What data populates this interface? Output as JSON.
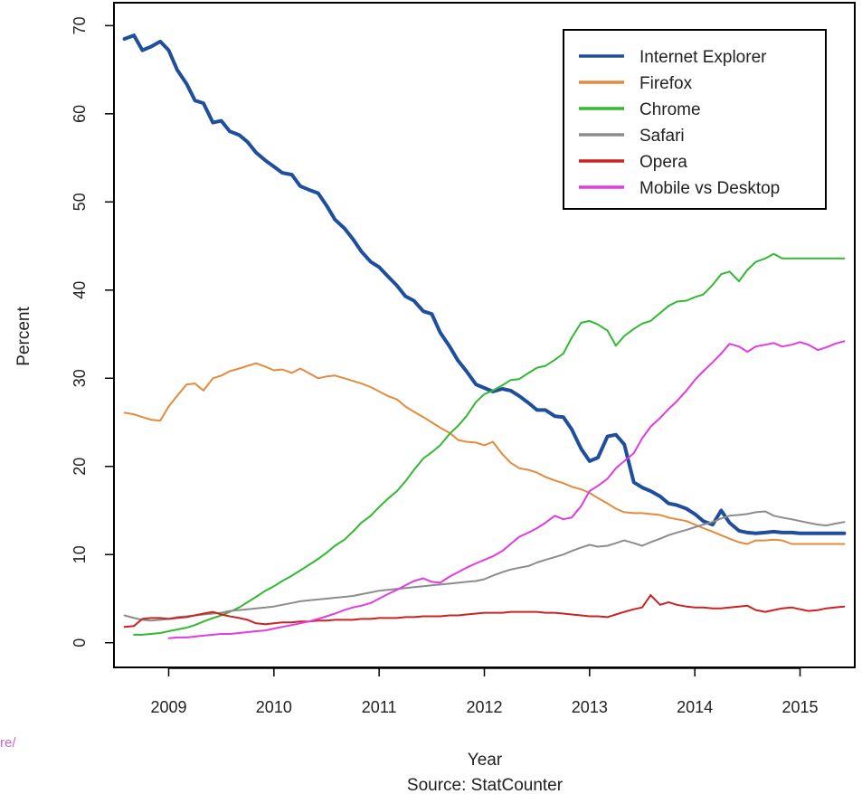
{
  "chart_data": {
    "type": "line",
    "title": "",
    "xlabel": "Year",
    "source_label": "Source: StatCounter",
    "ylabel": "Percent",
    "xlim": [
      2008.48,
      2015.52
    ],
    "ylim": [
      -2.8,
      72.6
    ],
    "x_ticks": [
      2009,
      2010,
      2011,
      2012,
      2013,
      2014,
      2015
    ],
    "y_ticks": [
      0,
      10,
      20,
      30,
      40,
      50,
      60,
      70
    ],
    "legend_position": "top-right",
    "grid": false,
    "series": [
      {
        "name": "Internet Explorer",
        "color": "#1f4e9c",
        "width": 4,
        "x": [
          2008.58,
          2008.67,
          2008.75,
          2008.83,
          2008.92,
          2009.0,
          2009.08,
          2009.17,
          2009.25,
          2009.33,
          2009.42,
          2009.5,
          2009.58,
          2009.67,
          2009.75,
          2009.83,
          2009.92,
          2010.0,
          2010.08,
          2010.17,
          2010.25,
          2010.33,
          2010.42,
          2010.5,
          2010.58,
          2010.67,
          2010.75,
          2010.83,
          2010.92,
          2011.0,
          2011.08,
          2011.17,
          2011.25,
          2011.33,
          2011.42,
          2011.5,
          2011.58,
          2011.67,
          2011.75,
          2011.83,
          2011.92,
          2012.0,
          2012.08,
          2012.17,
          2012.25,
          2012.33,
          2012.42,
          2012.5,
          2012.58,
          2012.67,
          2012.75,
          2012.83,
          2012.92,
          2013.0,
          2013.08,
          2013.17,
          2013.25,
          2013.33,
          2013.42,
          2013.5,
          2013.58,
          2013.67,
          2013.75,
          2013.83,
          2013.92,
          2014.0,
          2014.08,
          2014.17,
          2014.25,
          2014.33,
          2014.42,
          2014.5,
          2014.58,
          2014.67,
          2014.75,
          2014.83,
          2014.92,
          2015.0,
          2015.08,
          2015.17,
          2015.25,
          2015.33,
          2015.42
        ],
        "y": [
          68.5,
          68.9,
          67.2,
          67.6,
          68.2,
          67.2,
          65.0,
          63.4,
          61.5,
          61.2,
          59.0,
          59.2,
          58.0,
          57.6,
          56.8,
          55.6,
          54.7,
          54.0,
          53.3,
          53.1,
          51.8,
          51.4,
          51.0,
          49.6,
          48.0,
          47.0,
          45.8,
          44.4,
          43.2,
          42.6,
          41.6,
          40.5,
          39.3,
          38.8,
          37.6,
          37.3,
          35.2,
          33.6,
          32.0,
          30.8,
          29.3,
          28.9,
          28.5,
          28.8,
          28.6,
          28.0,
          27.2,
          26.4,
          26.4,
          25.7,
          25.6,
          24.2,
          22.0,
          20.6,
          21.0,
          23.4,
          23.6,
          22.5,
          18.2,
          17.6,
          17.2,
          16.6,
          15.8,
          15.6,
          15.2,
          14.6,
          13.8,
          13.4,
          15.0,
          13.6,
          12.7,
          12.5,
          12.4,
          12.5,
          12.6,
          12.5,
          12.5,
          12.4,
          12.4,
          12.4,
          12.4,
          12.4,
          12.4
        ]
      },
      {
        "name": "Firefox",
        "color": "#e58a3c",
        "width": 2,
        "x": [
          2008.58,
          2008.67,
          2008.75,
          2008.83,
          2008.92,
          2009.0,
          2009.08,
          2009.17,
          2009.25,
          2009.33,
          2009.42,
          2009.5,
          2009.58,
          2009.67,
          2009.75,
          2009.83,
          2009.92,
          2010.0,
          2010.08,
          2010.17,
          2010.25,
          2010.33,
          2010.42,
          2010.5,
          2010.58,
          2010.67,
          2010.75,
          2010.83,
          2010.92,
          2011.0,
          2011.08,
          2011.17,
          2011.25,
          2011.33,
          2011.42,
          2011.5,
          2011.58,
          2011.67,
          2011.75,
          2011.83,
          2011.92,
          2012.0,
          2012.08,
          2012.17,
          2012.25,
          2012.33,
          2012.42,
          2012.5,
          2012.58,
          2012.67,
          2012.75,
          2012.83,
          2012.92,
          2013.0,
          2013.08,
          2013.17,
          2013.25,
          2013.33,
          2013.42,
          2013.5,
          2013.58,
          2013.67,
          2013.75,
          2013.83,
          2013.92,
          2014.0,
          2014.08,
          2014.17,
          2014.25,
          2014.33,
          2014.42,
          2014.5,
          2014.58,
          2014.67,
          2014.75,
          2014.83,
          2014.92,
          2015.0,
          2015.08,
          2015.17,
          2015.25,
          2015.33,
          2015.42
        ],
        "y": [
          26.1,
          25.9,
          25.6,
          25.3,
          25.2,
          26.8,
          28.0,
          29.3,
          29.4,
          28.6,
          30.0,
          30.3,
          30.8,
          31.1,
          31.4,
          31.7,
          31.3,
          30.9,
          31.0,
          30.6,
          31.1,
          30.6,
          30.0,
          30.2,
          30.3,
          30.0,
          29.7,
          29.4,
          29.0,
          28.5,
          28.0,
          27.6,
          26.8,
          26.2,
          25.6,
          25.0,
          24.4,
          23.8,
          23.0,
          22.8,
          22.7,
          22.4,
          22.8,
          21.4,
          20.4,
          19.8,
          19.6,
          19.3,
          18.8,
          18.4,
          18.1,
          17.7,
          17.4,
          17.0,
          16.4,
          15.8,
          15.2,
          14.8,
          14.7,
          14.7,
          14.6,
          14.5,
          14.2,
          14.0,
          13.8,
          13.4,
          13.0,
          12.6,
          12.2,
          11.8,
          11.4,
          11.2,
          11.6,
          11.6,
          11.7,
          11.6,
          11.2,
          11.2,
          11.2,
          11.2,
          11.2,
          11.2,
          11.2
        ]
      },
      {
        "name": "Chrome",
        "color": "#33b833",
        "width": 2,
        "x": [
          2008.67,
          2008.75,
          2008.83,
          2008.92,
          2009.0,
          2009.08,
          2009.17,
          2009.25,
          2009.33,
          2009.42,
          2009.5,
          2009.58,
          2009.67,
          2009.75,
          2009.83,
          2009.92,
          2010.0,
          2010.08,
          2010.17,
          2010.25,
          2010.33,
          2010.42,
          2010.5,
          2010.58,
          2010.67,
          2010.75,
          2010.83,
          2010.92,
          2011.0,
          2011.08,
          2011.17,
          2011.25,
          2011.33,
          2011.42,
          2011.5,
          2011.58,
          2011.67,
          2011.75,
          2011.83,
          2011.92,
          2012.0,
          2012.08,
          2012.17,
          2012.25,
          2012.33,
          2012.42,
          2012.5,
          2012.58,
          2012.67,
          2012.75,
          2012.83,
          2012.92,
          2013.0,
          2013.08,
          2013.17,
          2013.25,
          2013.33,
          2013.42,
          2013.5,
          2013.58,
          2013.67,
          2013.75,
          2013.83,
          2013.92,
          2014.0,
          2014.08,
          2014.17,
          2014.25,
          2014.33,
          2014.42,
          2014.5,
          2014.58,
          2014.67,
          2014.75,
          2014.83,
          2014.92,
          2015.0,
          2015.08,
          2015.17,
          2015.25,
          2015.33,
          2015.42
        ],
        "y": [
          0.9,
          0.9,
          1.0,
          1.1,
          1.3,
          1.5,
          1.7,
          2.0,
          2.4,
          2.8,
          3.1,
          3.5,
          4.0,
          4.6,
          5.2,
          5.9,
          6.4,
          7.0,
          7.6,
          8.2,
          8.8,
          9.5,
          10.2,
          11.0,
          11.7,
          12.6,
          13.6,
          14.4,
          15.4,
          16.3,
          17.2,
          18.3,
          19.6,
          20.9,
          21.6,
          22.4,
          23.7,
          24.6,
          25.7,
          27.3,
          28.2,
          28.6,
          29.2,
          29.8,
          29.9,
          30.6,
          31.2,
          31.4,
          32.1,
          32.8,
          34.6,
          36.3,
          36.5,
          36.1,
          35.4,
          33.7,
          34.8,
          35.6,
          36.2,
          36.5,
          37.4,
          38.2,
          38.7,
          38.8,
          39.2,
          39.5,
          40.6,
          41.8,
          42.1,
          41.0,
          42.3,
          43.2,
          43.6,
          44.1,
          43.6,
          43.6,
          43.6,
          43.6,
          43.6,
          43.6,
          43.6,
          43.6
        ]
      },
      {
        "name": "Safari",
        "color": "#8c8c8c",
        "width": 2,
        "x": [
          2008.58,
          2008.67,
          2008.75,
          2008.83,
          2008.92,
          2009.0,
          2009.08,
          2009.17,
          2009.25,
          2009.33,
          2009.42,
          2009.5,
          2009.58,
          2009.67,
          2009.75,
          2009.83,
          2009.92,
          2010.0,
          2010.08,
          2010.17,
          2010.25,
          2010.33,
          2010.42,
          2010.5,
          2010.58,
          2010.67,
          2010.75,
          2010.83,
          2010.92,
          2011.0,
          2011.08,
          2011.17,
          2011.25,
          2011.33,
          2011.42,
          2011.5,
          2011.58,
          2011.67,
          2011.75,
          2011.83,
          2011.92,
          2012.0,
          2012.08,
          2012.17,
          2012.25,
          2012.33,
          2012.42,
          2012.5,
          2012.58,
          2012.67,
          2012.75,
          2012.83,
          2012.92,
          2013.0,
          2013.08,
          2013.17,
          2013.25,
          2013.33,
          2013.42,
          2013.5,
          2013.58,
          2013.67,
          2013.75,
          2013.83,
          2013.92,
          2014.0,
          2014.08,
          2014.17,
          2014.25,
          2014.33,
          2014.42,
          2014.5,
          2014.58,
          2014.67,
          2014.75,
          2014.83,
          2014.92,
          2015.0,
          2015.08,
          2015.17,
          2015.25,
          2015.33,
          2015.42
        ],
        "y": [
          3.1,
          2.8,
          2.6,
          2.5,
          2.6,
          2.7,
          2.9,
          3.0,
          3.1,
          3.2,
          3.3,
          3.4,
          3.6,
          3.7,
          3.8,
          3.9,
          4.0,
          4.1,
          4.3,
          4.5,
          4.7,
          4.8,
          4.9,
          5.0,
          5.1,
          5.2,
          5.3,
          5.5,
          5.7,
          5.9,
          6.0,
          6.1,
          6.2,
          6.3,
          6.4,
          6.5,
          6.6,
          6.7,
          6.8,
          6.9,
          7.0,
          7.2,
          7.6,
          8.0,
          8.3,
          8.5,
          8.7,
          9.1,
          9.4,
          9.7,
          10.0,
          10.4,
          10.8,
          11.1,
          10.9,
          11.0,
          11.3,
          11.6,
          11.3,
          11.0,
          11.4,
          11.8,
          12.2,
          12.5,
          12.8,
          13.1,
          13.4,
          13.7,
          14.1,
          14.4,
          14.5,
          14.6,
          14.8,
          14.9,
          14.4,
          14.2,
          14.0,
          13.8,
          13.6,
          13.4,
          13.3,
          13.5,
          13.7
        ]
      },
      {
        "name": "Opera",
        "color": "#cc2222",
        "width": 2,
        "x": [
          2008.58,
          2008.67,
          2008.75,
          2008.83,
          2008.92,
          2009.0,
          2009.08,
          2009.17,
          2009.25,
          2009.33,
          2009.42,
          2009.5,
          2009.58,
          2009.67,
          2009.75,
          2009.83,
          2009.92,
          2010.0,
          2010.08,
          2010.17,
          2010.25,
          2010.33,
          2010.42,
          2010.5,
          2010.58,
          2010.67,
          2010.75,
          2010.83,
          2010.92,
          2011.0,
          2011.08,
          2011.17,
          2011.25,
          2011.33,
          2011.42,
          2011.5,
          2011.58,
          2011.67,
          2011.75,
          2011.83,
          2011.92,
          2012.0,
          2012.08,
          2012.17,
          2012.25,
          2012.33,
          2012.42,
          2012.5,
          2012.58,
          2012.67,
          2012.75,
          2012.83,
          2012.92,
          2013.0,
          2013.08,
          2013.17,
          2013.25,
          2013.33,
          2013.42,
          2013.5,
          2013.58,
          2013.67,
          2013.75,
          2013.83,
          2013.92,
          2014.0,
          2014.08,
          2014.17,
          2014.25,
          2014.33,
          2014.42,
          2014.5,
          2014.58,
          2014.67,
          2014.75,
          2014.83,
          2014.92,
          2015.0,
          2015.08,
          2015.17,
          2015.25,
          2015.33,
          2015.42
        ],
        "y": [
          1.8,
          1.9,
          2.7,
          2.8,
          2.8,
          2.7,
          2.8,
          2.9,
          3.1,
          3.3,
          3.5,
          3.2,
          3.0,
          2.8,
          2.6,
          2.2,
          2.1,
          2.2,
          2.3,
          2.3,
          2.4,
          2.4,
          2.5,
          2.5,
          2.6,
          2.6,
          2.6,
          2.7,
          2.7,
          2.8,
          2.8,
          2.8,
          2.9,
          2.9,
          3.0,
          3.0,
          3.0,
          3.1,
          3.1,
          3.2,
          3.3,
          3.4,
          3.4,
          3.4,
          3.5,
          3.5,
          3.5,
          3.5,
          3.4,
          3.4,
          3.3,
          3.2,
          3.1,
          3.0,
          3.0,
          2.9,
          3.2,
          3.5,
          3.8,
          4.0,
          5.4,
          4.3,
          4.6,
          4.3,
          4.1,
          4.0,
          4.0,
          3.9,
          3.9,
          4.0,
          4.1,
          4.2,
          3.7,
          3.5,
          3.7,
          3.9,
          4.0,
          3.8,
          3.6,
          3.7,
          3.9,
          4.0,
          4.1
        ]
      },
      {
        "name": "Mobile vs Desktop",
        "color": "#e03ce0",
        "width": 2,
        "x": [
          2009.0,
          2009.08,
          2009.17,
          2009.25,
          2009.33,
          2009.42,
          2009.5,
          2009.58,
          2009.67,
          2009.75,
          2009.83,
          2009.92,
          2010.0,
          2010.08,
          2010.17,
          2010.25,
          2010.33,
          2010.42,
          2010.5,
          2010.58,
          2010.67,
          2010.75,
          2010.83,
          2010.92,
          2011.0,
          2011.08,
          2011.17,
          2011.25,
          2011.33,
          2011.42,
          2011.5,
          2011.58,
          2011.67,
          2011.75,
          2011.83,
          2011.92,
          2012.0,
          2012.08,
          2012.17,
          2012.25,
          2012.33,
          2012.42,
          2012.5,
          2012.58,
          2012.67,
          2012.75,
          2012.83,
          2012.92,
          2013.0,
          2013.08,
          2013.17,
          2013.25,
          2013.33,
          2013.42,
          2013.5,
          2013.58,
          2013.67,
          2013.75,
          2013.83,
          2013.92,
          2014.0,
          2014.08,
          2014.17,
          2014.25,
          2014.33,
          2014.42,
          2014.5,
          2014.58,
          2014.67,
          2014.75,
          2014.83,
          2014.92,
          2015.0,
          2015.08,
          2015.17,
          2015.25,
          2015.33,
          2015.42
        ],
        "y": [
          0.5,
          0.6,
          0.6,
          0.7,
          0.8,
          0.9,
          1.0,
          1.0,
          1.1,
          1.2,
          1.3,
          1.4,
          1.6,
          1.8,
          2.0,
          2.2,
          2.4,
          2.7,
          3.0,
          3.3,
          3.7,
          4.0,
          4.2,
          4.5,
          5.0,
          5.5,
          6.0,
          6.5,
          7.0,
          7.3,
          6.9,
          6.8,
          7.5,
          8.0,
          8.5,
          9.0,
          9.4,
          9.8,
          10.4,
          11.2,
          12.0,
          12.5,
          13.0,
          13.6,
          14.4,
          14.0,
          14.2,
          15.5,
          17.2,
          17.8,
          18.6,
          19.8,
          20.6,
          21.5,
          23.2,
          24.5,
          25.5,
          26.5,
          27.4,
          28.6,
          29.8,
          30.8,
          31.8,
          32.8,
          33.9,
          33.6,
          33.0,
          33.6,
          33.8,
          34.0,
          33.6,
          33.8,
          34.1,
          33.8,
          33.2,
          33.5,
          33.9,
          34.2
        ]
      }
    ]
  },
  "stray_text": "re/"
}
